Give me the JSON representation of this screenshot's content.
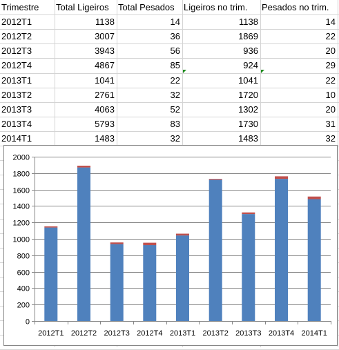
{
  "table": {
    "headers": [
      "Trimestre",
      "Total Ligeiros",
      "Total Pesados",
      "Ligeiros no trim.",
      "Pesados no trim."
    ],
    "rows": [
      [
        "2012T1",
        "1138",
        "14",
        "1138",
        "14"
      ],
      [
        "2012T2",
        "3007",
        "36",
        "1869",
        "22"
      ],
      [
        "2012T3",
        "3943",
        "56",
        "936",
        "20"
      ],
      [
        "2012T4",
        "4867",
        "85",
        "924",
        "29"
      ],
      [
        "2013T1",
        "1041",
        "22",
        "1041",
        "22"
      ],
      [
        "2013T2",
        "2761",
        "32",
        "1720",
        "10"
      ],
      [
        "2013T3",
        "4063",
        "52",
        "1302",
        "20"
      ],
      [
        "2013T4",
        "5793",
        "83",
        "1730",
        "31"
      ],
      [
        "2014T1",
        "1483",
        "32",
        "1483",
        "32"
      ]
    ]
  },
  "colors": {
    "bar_ligeiros": "#4f81bd",
    "bar_pesados": "#c0504d",
    "error_indicator": "#1e8c1e"
  },
  "chart_data": {
    "type": "bar",
    "stacked": true,
    "categories": [
      "2012T1",
      "2012T2",
      "2012T3",
      "2012T4",
      "2013T1",
      "2013T2",
      "2013T3",
      "2013T4",
      "2014T1"
    ],
    "series": [
      {
        "values": [
          1138,
          1869,
          936,
          924,
          1041,
          1720,
          1302,
          1730,
          1483
        ]
      },
      {
        "values": [
          14,
          22,
          20,
          29,
          22,
          10,
          20,
          31,
          32
        ]
      }
    ],
    "ylim": [
      0,
      2000
    ],
    "yticks": [
      "0",
      "200",
      "400",
      "600",
      "800",
      "1000",
      "1200",
      "1400",
      "1600",
      "1800",
      "2000"
    ],
    "grid": true,
    "legend": "none"
  }
}
